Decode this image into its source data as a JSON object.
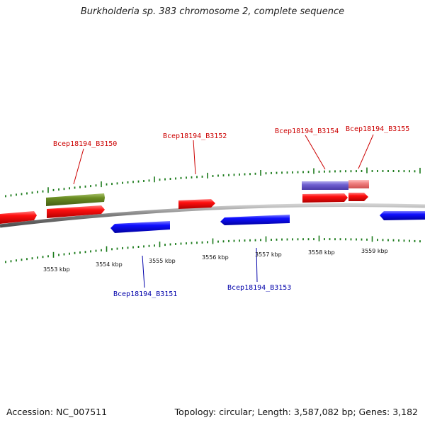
{
  "title": "Burkholderia sp. 383 chromosome 2, complete sequence",
  "footer": {
    "accession": "Accession: NC_007511",
    "summary": "Topology: circular; Length: 3,587,082 bp; Genes: 3,182"
  },
  "colors": {
    "forward_gene": "#ff0000",
    "reverse_gene": "#0000ff",
    "rna_gene": "#6b8e23",
    "forward_label": "#cc0000",
    "reverse_label": "#0000aa",
    "tick": "#1a7a1a",
    "backbone": "#808080"
  },
  "scale": {
    "ticks": [
      "3553 kbp",
      "3554 kbp",
      "3555 kbp",
      "3556 kbp",
      "3557 kbp",
      "3558 kbp",
      "3559 kbp"
    ]
  },
  "gene_labels": [
    {
      "id": "b3150",
      "text": "Bcep18194_B3150",
      "strand": "forward"
    },
    {
      "id": "b3151",
      "text": "Bcep18194_B3151",
      "strand": "reverse"
    },
    {
      "id": "b3152",
      "text": "Bcep18194_B3152",
      "strand": "forward"
    },
    {
      "id": "b3153",
      "text": "Bcep18194_B3153",
      "strand": "reverse"
    },
    {
      "id": "b3154",
      "text": "Bcep18194_B3154",
      "strand": "forward"
    },
    {
      "id": "b3155",
      "text": "Bcep18194_B3155",
      "strand": "forward"
    }
  ]
}
